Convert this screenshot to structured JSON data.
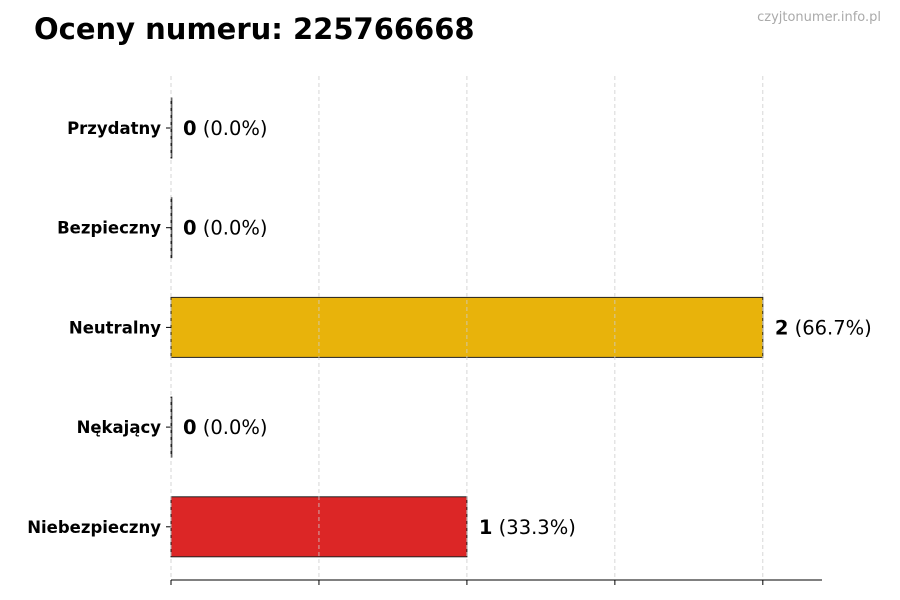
{
  "watermark": "czyjtonumer.info.pl",
  "chart_data": {
    "type": "bar",
    "orientation": "horizontal",
    "title": "Oceny numeru: 225766668",
    "categories": [
      "Przydatny",
      "Bezpieczny",
      "Neutralny",
      "Nękający",
      "Niebezpieczny"
    ],
    "values": [
      0,
      0,
      2,
      0,
      1
    ],
    "percent_labels": [
      "(0.0%)",
      "(0.0%)",
      "(66.7%)",
      "(0.0%)",
      "(33.3%)"
    ],
    "colors": [
      "#2ca02c",
      "#1f77b4",
      "#E8B30B",
      "#8c564b",
      "#DC2626"
    ],
    "xlim": [
      0,
      2.2
    ],
    "xticks": [
      0,
      0.5,
      1,
      1.5,
      2
    ],
    "xtick_labels_shown": false,
    "grid": "x-dashed",
    "legend": "none",
    "xlabel": "",
    "ylabel": ""
  }
}
